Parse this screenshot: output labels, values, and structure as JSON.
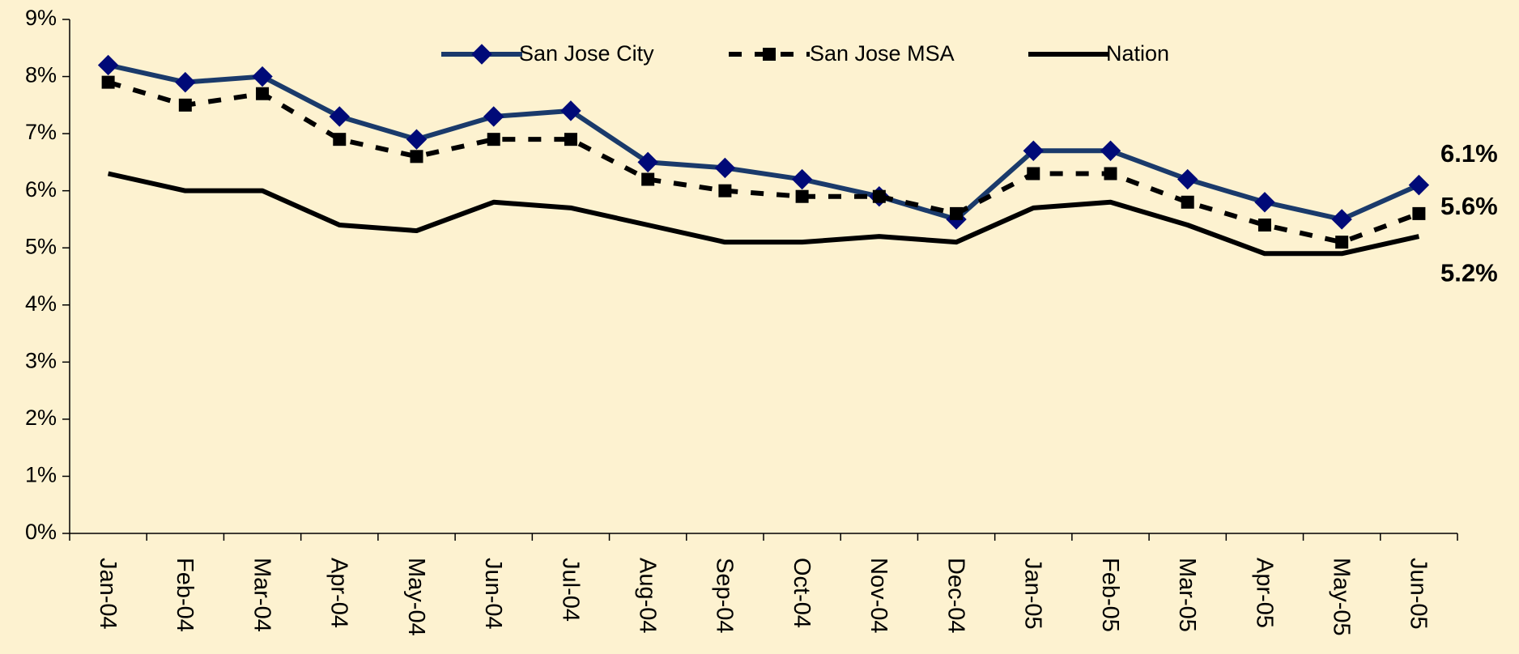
{
  "chart_data": {
    "type": "line",
    "categories": [
      "Jan-04",
      "Feb-04",
      "Mar-04",
      "Apr-04",
      "May-04",
      "Jun-04",
      "Jul-04",
      "Aug-04",
      "Sep-04",
      "Oct-04",
      "Nov-04",
      "Dec-04",
      "Jan-05",
      "Feb-05",
      "Mar-05",
      "Apr-05",
      "May-05",
      "Jun-05"
    ],
    "series": [
      {
        "name": "San Jose City",
        "color": "#1a3a6b",
        "marker": "diamond",
        "marker_color": "#000a78",
        "dash": false,
        "values": [
          8.2,
          7.9,
          8.0,
          7.3,
          6.9,
          7.3,
          7.4,
          6.5,
          6.4,
          6.2,
          5.9,
          5.5,
          6.7,
          6.7,
          6.2,
          5.8,
          5.5,
          6.1
        ],
        "value_labels": [
          null,
          null,
          null,
          null,
          null,
          null,
          null,
          null,
          null,
          null,
          null,
          null,
          null,
          null,
          null,
          null,
          null,
          "6.1%"
        ]
      },
      {
        "name": "San Jose MSA",
        "color": "#000000",
        "marker": "square",
        "marker_color": "#000000",
        "dash": true,
        "values": [
          7.9,
          7.5,
          7.7,
          6.9,
          6.6,
          6.9,
          6.9,
          6.2,
          6.0,
          5.9,
          5.9,
          5.6,
          6.3,
          6.3,
          5.8,
          5.4,
          5.1,
          5.6
        ],
        "value_labels": [
          null,
          null,
          null,
          null,
          null,
          null,
          null,
          null,
          null,
          null,
          null,
          null,
          null,
          null,
          null,
          null,
          null,
          "5.6%"
        ]
      },
      {
        "name": "Nation",
        "color": "#000000",
        "marker": "none",
        "marker_color": "#000000",
        "dash": false,
        "values": [
          6.3,
          6.0,
          6.0,
          5.4,
          5.3,
          5.8,
          5.7,
          5.4,
          5.1,
          5.1,
          5.2,
          5.1,
          5.7,
          5.8,
          5.4,
          4.9,
          4.9,
          5.2
        ],
        "value_labels": [
          null,
          null,
          null,
          null,
          null,
          null,
          null,
          null,
          null,
          null,
          null,
          null,
          null,
          null,
          null,
          null,
          null,
          "5.2%"
        ]
      }
    ],
    "ylim": [
      0,
      9
    ],
    "yticks": [
      {
        "value": 0,
        "label": "0%"
      },
      {
        "value": 1,
        "label": "1%"
      },
      {
        "value": 2,
        "label": "2%"
      },
      {
        "value": 3,
        "label": "3%"
      },
      {
        "value": 4,
        "label": "4%"
      },
      {
        "value": 5,
        "label": "5%"
      },
      {
        "value": 6,
        "label": "6%"
      },
      {
        "value": 7,
        "label": "7%"
      },
      {
        "value": 8,
        "label": "8%"
      },
      {
        "value": 9,
        "label": "9%"
      }
    ],
    "grid": false,
    "legend": "top"
  }
}
